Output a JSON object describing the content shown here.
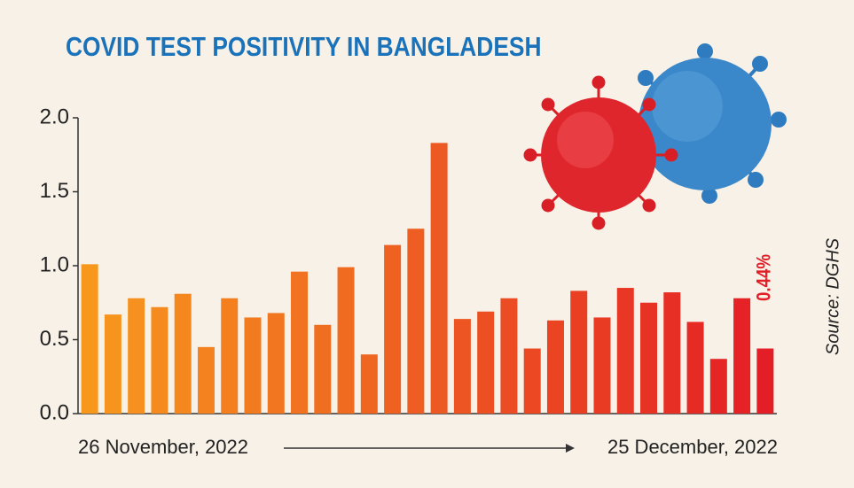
{
  "chart_data": {
    "type": "bar",
    "title": "COVID TEST POSITIVITY IN BANGLADESH",
    "categories": [
      null,
      null,
      null,
      null,
      null,
      null,
      null,
      null,
      null,
      null,
      null,
      null,
      null,
      null,
      null,
      null,
      null,
      null,
      null,
      null,
      null,
      null,
      null,
      null,
      null,
      null,
      null,
      null,
      null,
      null
    ],
    "values": [
      1.01,
      0.67,
      0.78,
      0.72,
      0.81,
      0.45,
      0.78,
      0.65,
      0.68,
      0.96,
      0.6,
      0.99,
      0.4,
      1.14,
      1.25,
      1.83,
      0.64,
      0.69,
      0.78,
      0.44,
      0.63,
      0.83,
      0.65,
      0.85,
      0.75,
      0.82,
      0.62,
      0.37,
      0.78,
      0.44
    ],
    "value_labels": [
      null,
      null,
      null,
      null,
      null,
      null,
      null,
      null,
      null,
      null,
      null,
      null,
      null,
      null,
      null,
      null,
      null,
      null,
      null,
      null,
      null,
      null,
      null,
      null,
      null,
      null,
      null,
      null,
      null,
      "0.44%"
    ],
    "color_start": "#f7981d",
    "color_end": "#e41e26",
    "ylim": [
      0,
      2
    ],
    "yticks": [
      {
        "value": 0,
        "label": "0.0"
      },
      {
        "value": 0.5,
        "label": "0.5"
      },
      {
        "value": 1,
        "label": "1.0"
      },
      {
        "value": 1.5,
        "label": "1.5"
      },
      {
        "value": 2,
        "label": "2.0"
      }
    ],
    "start_label": "26 November, 2022",
    "end_label": "25 December, 2022",
    "source": "Source: DGHS"
  }
}
